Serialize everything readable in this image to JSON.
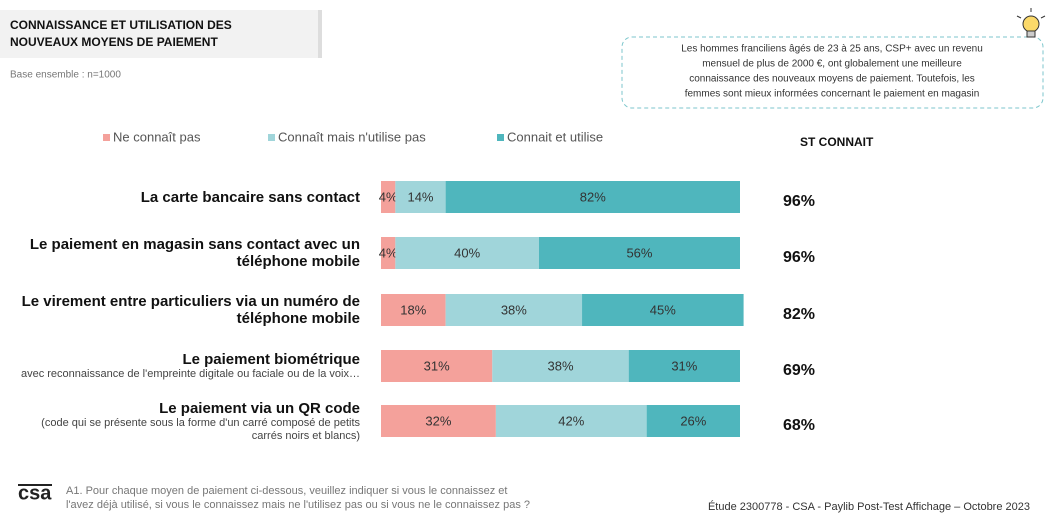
{
  "chart_data": {
    "type": "stacked_barh",
    "title_lines": [
      "CONNAISSANCE ET UTILISATION DES",
      "NOUVEAUX MOYENS DE PAIEMENT"
    ],
    "subtitle": "Base ensemble : n=1000",
    "callout_lines": [
      "Les hommes franciliens âgés de 23 à 25 ans, CSP+ avec un revenu",
      "mensuel de plus de 2000 €, ont globalement une meilleure",
      "connaissance des nouveaux moyens de paiement. Toutefois, les",
      "femmes sont mieux informées concernant le paiement en magasin"
    ],
    "categories": [
      "La carte bancaire sans contact",
      "Le paiement en magasin sans contact avec un téléphone mobile",
      "Le virement entre particuliers via un numéro de téléphone mobile",
      "Le paiement biométrique",
      "Le paiement via un QR code"
    ],
    "category_notes": [
      null,
      null,
      null,
      "avec reconnaissance de l'empreinte digitale ou faciale ou de la voix…",
      "(code qui se présente sous la forme d'un carré composé de petits carrés noirs et blancs)"
    ],
    "xlim": [
      0,
      100
    ],
    "series": [
      {
        "name": "Ne connaît pas",
        "color": "#f4a19b",
        "values": [
          4,
          4,
          18,
          31,
          32
        ],
        "value_labels": [
          "4%",
          "4%",
          "18%",
          "31%",
          "32%"
        ]
      },
      {
        "name": "Connaît mais n'utilise pas",
        "color": "#a0d5da",
        "values": [
          14,
          40,
          38,
          38,
          42
        ],
        "value_labels": [
          "14%",
          "40%",
          "38%",
          "38%",
          "42%"
        ]
      },
      {
        "name": "Connait et utilise",
        "color": "#4fb6bd",
        "values": [
          82,
          56,
          45,
          31,
          26
        ],
        "value_labels": [
          "82%",
          "56%",
          "45%",
          "31%",
          "26%"
        ]
      }
    ],
    "st_connait": {
      "header": "ST CONNAIT",
      "values": [
        96,
        96,
        82,
        69,
        68
      ],
      "value_labels": [
        "96%",
        "96%",
        "82%",
        "69%",
        "68%"
      ]
    },
    "logo": "csa",
    "question_lines": [
      "A1. Pour chaque moyen de paiement ci-dessous, veuillez indiquer si vous le connaissez et",
      "l'avez déjà utilisé, si vous le connaissez mais ne l'utilisez pas ou si vous ne le connaissez pas ?"
    ],
    "source": "Étude 2300778 - CSA - Paylib Post-Test Affichage – Octobre 2023"
  }
}
